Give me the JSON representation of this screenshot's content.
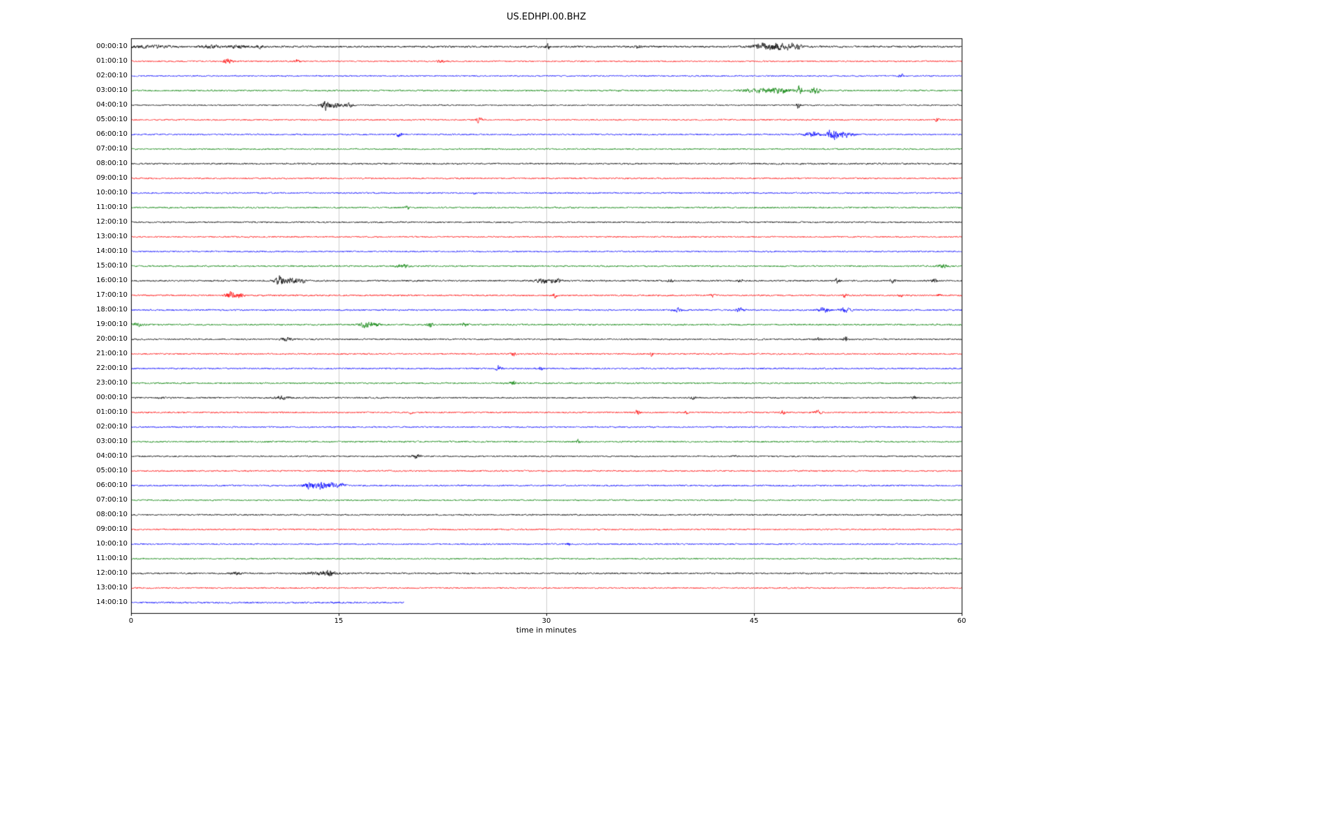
{
  "page": {
    "background": "#ffffff"
  },
  "chart_data": {
    "type": "line",
    "variant": "seismogram-helicorder-dayplot",
    "title": "US.EDHPI.00.BHZ",
    "xlabel": "time in minutes",
    "xlim": [
      0,
      60
    ],
    "x_ticks": [
      0,
      15,
      30,
      45,
      60
    ],
    "grid": {
      "vertical_lines_at": [
        15,
        30,
        45
      ],
      "color": "#cccccc"
    },
    "axes_color": "#000000",
    "trace_color_cycle": {
      "black": "#000000",
      "red": "#ff0000",
      "blue": "#0000ff",
      "green": "#008000"
    },
    "rows": [
      {
        "label": "00:00:10",
        "color": "black",
        "noise": 1.1,
        "end": 60,
        "events": [
          [
            1.2,
            1.2,
            1.2
          ],
          [
            5.8,
            0.5,
            1.5
          ],
          [
            7.8,
            0.4,
            1.6
          ],
          [
            9.2,
            0.3,
            1.2
          ],
          [
            30.1,
            0.1,
            3.0
          ],
          [
            36.6,
            0.15,
            1.5
          ],
          [
            45.6,
            0.5,
            2.2
          ],
          [
            46.8,
            0.8,
            2.6
          ],
          [
            48.0,
            0.3,
            2.0
          ]
        ]
      },
      {
        "label": "01:00:10",
        "color": "red",
        "noise": 0.8,
        "end": 60,
        "events": [
          [
            7.0,
            0.2,
            3.5
          ],
          [
            11.9,
            0.15,
            2.2
          ],
          [
            22.4,
            0.2,
            1.2
          ]
        ]
      },
      {
        "label": "02:00:10",
        "color": "blue",
        "noise": 0.8,
        "end": 60,
        "events": [
          [
            55.6,
            0.12,
            2.0
          ]
        ]
      },
      {
        "label": "03:00:10",
        "color": "green",
        "noise": 0.9,
        "end": 60,
        "events": [
          [
            45.3,
            0.8,
            1.8
          ],
          [
            46.8,
            0.6,
            2.2
          ],
          [
            48.3,
            0.12,
            4.5
          ],
          [
            49.4,
            0.3,
            2.5
          ]
        ]
      },
      {
        "label": "04:00:10",
        "color": "black",
        "noise": 0.8,
        "end": 60,
        "events": [
          [
            14.1,
            0.25,
            4.5
          ],
          [
            14.9,
            0.4,
            2.0
          ],
          [
            15.8,
            0.2,
            1.5
          ],
          [
            48.2,
            0.1,
            3.5
          ]
        ]
      },
      {
        "label": "05:00:10",
        "color": "red",
        "noise": 0.8,
        "end": 60,
        "events": [
          [
            25.1,
            0.2,
            2.2
          ],
          [
            58.2,
            0.12,
            1.6
          ]
        ]
      },
      {
        "label": "06:00:10",
        "color": "blue",
        "noise": 0.85,
        "end": 60,
        "events": [
          [
            19.4,
            0.15,
            2.2
          ],
          [
            49.2,
            0.4,
            2.2
          ],
          [
            50.6,
            0.25,
            5.0
          ],
          [
            51.4,
            0.5,
            3.0
          ]
        ]
      },
      {
        "label": "07:00:10",
        "color": "green",
        "noise": 0.85,
        "end": 60,
        "events": []
      },
      {
        "label": "08:00:10",
        "color": "black",
        "noise": 0.95,
        "end": 60,
        "events": []
      },
      {
        "label": "09:00:10",
        "color": "red",
        "noise": 0.85,
        "end": 60,
        "events": []
      },
      {
        "label": "10:00:10",
        "color": "blue",
        "noise": 0.85,
        "end": 60,
        "events": [
          [
            24.9,
            0.12,
            1.4
          ]
        ]
      },
      {
        "label": "11:00:10",
        "color": "green",
        "noise": 0.9,
        "end": 60,
        "events": [
          [
            20.0,
            0.1,
            2.0
          ]
        ]
      },
      {
        "label": "12:00:10",
        "color": "black",
        "noise": 0.9,
        "end": 60,
        "events": []
      },
      {
        "label": "13:00:10",
        "color": "red",
        "noise": 0.8,
        "end": 60,
        "events": []
      },
      {
        "label": "14:00:10",
        "color": "blue",
        "noise": 0.85,
        "end": 60,
        "events": []
      },
      {
        "label": "15:00:10",
        "color": "green",
        "noise": 0.9,
        "end": 60,
        "events": [
          [
            19.6,
            0.3,
            1.8
          ],
          [
            58.6,
            0.25,
            1.6
          ]
        ]
      },
      {
        "label": "16:00:10",
        "color": "black",
        "noise": 0.95,
        "end": 60,
        "events": [
          [
            10.7,
            0.2,
            5.0
          ],
          [
            11.4,
            0.4,
            3.0
          ],
          [
            12.3,
            0.25,
            2.0
          ],
          [
            29.8,
            0.4,
            2.2
          ],
          [
            30.7,
            0.25,
            2.2
          ],
          [
            39.0,
            0.15,
            1.6
          ],
          [
            44.0,
            0.15,
            1.6
          ],
          [
            51.0,
            0.15,
            2.2
          ],
          [
            55.0,
            0.15,
            1.6
          ],
          [
            58.0,
            0.15,
            1.8
          ]
        ]
      },
      {
        "label": "17:00:10",
        "color": "red",
        "noise": 0.9,
        "end": 60,
        "events": [
          [
            7.2,
            0.25,
            3.2
          ],
          [
            7.9,
            0.15,
            2.6
          ],
          [
            30.6,
            0.12,
            1.8
          ],
          [
            42.0,
            0.12,
            2.0
          ],
          [
            51.6,
            0.12,
            2.2
          ],
          [
            55.6,
            0.1,
            1.6
          ],
          [
            58.4,
            0.1,
            1.6
          ]
        ]
      },
      {
        "label": "18:00:10",
        "color": "blue",
        "noise": 0.9,
        "end": 60,
        "events": [
          [
            39.5,
            0.25,
            1.8
          ],
          [
            44.0,
            0.25,
            1.8
          ],
          [
            50.1,
            0.3,
            2.2
          ],
          [
            51.6,
            0.25,
            2.6
          ]
        ]
      },
      {
        "label": "19:00:10",
        "color": "green",
        "noise": 0.95,
        "end": 60,
        "events": [
          [
            0.5,
            0.3,
            1.6
          ],
          [
            16.9,
            0.3,
            2.6
          ],
          [
            17.6,
            0.25,
            2.2
          ],
          [
            21.6,
            0.15,
            2.2
          ],
          [
            24.1,
            0.15,
            1.8
          ]
        ]
      },
      {
        "label": "20:00:10",
        "color": "black",
        "noise": 0.9,
        "end": 60,
        "events": [
          [
            11.2,
            0.3,
            1.6
          ],
          [
            49.6,
            0.15,
            1.6
          ],
          [
            51.6,
            0.1,
            3.2
          ]
        ]
      },
      {
        "label": "21:00:10",
        "color": "red",
        "noise": 0.85,
        "end": 60,
        "events": [
          [
            27.6,
            0.1,
            2.4
          ],
          [
            37.6,
            0.1,
            2.0
          ]
        ]
      },
      {
        "label": "22:00:10",
        "color": "blue",
        "noise": 0.9,
        "end": 60,
        "events": [
          [
            26.6,
            0.15,
            2.8
          ],
          [
            29.6,
            0.12,
            2.0
          ]
        ]
      },
      {
        "label": "23:00:10",
        "color": "green",
        "noise": 0.9,
        "end": 60,
        "events": [
          [
            27.6,
            0.18,
            2.2
          ]
        ]
      },
      {
        "label": "00:00:10",
        "color": "black",
        "noise": 0.9,
        "end": 60,
        "events": [
          [
            2.2,
            0.15,
            1.4
          ],
          [
            10.9,
            0.4,
            1.8
          ],
          [
            40.6,
            0.12,
            1.4
          ],
          [
            56.6,
            0.12,
            1.8
          ]
        ]
      },
      {
        "label": "01:00:10",
        "color": "red",
        "noise": 0.85,
        "end": 60,
        "events": [
          [
            20.2,
            0.08,
            1.4
          ],
          [
            36.6,
            0.12,
            2.8
          ],
          [
            40.1,
            0.1,
            1.6
          ],
          [
            47.1,
            0.12,
            1.8
          ],
          [
            49.6,
            0.2,
            1.8
          ]
        ]
      },
      {
        "label": "02:00:10",
        "color": "blue",
        "noise": 0.85,
        "end": 60,
        "events": []
      },
      {
        "label": "03:00:10",
        "color": "green",
        "noise": 0.9,
        "end": 60,
        "events": [
          [
            32.3,
            0.12,
            1.6
          ]
        ]
      },
      {
        "label": "04:00:10",
        "color": "black",
        "noise": 0.85,
        "end": 60,
        "events": [
          [
            20.6,
            0.2,
            2.2
          ],
          [
            43.6,
            0.1,
            1.6
          ]
        ]
      },
      {
        "label": "05:00:10",
        "color": "red",
        "noise": 0.85,
        "end": 60,
        "events": []
      },
      {
        "label": "06:00:10",
        "color": "blue",
        "noise": 0.9,
        "end": 60,
        "events": [
          [
            12.9,
            0.3,
            3.2
          ],
          [
            13.8,
            0.25,
            5.0
          ],
          [
            14.6,
            0.25,
            2.8
          ],
          [
            15.3,
            0.15,
            2.0
          ]
        ]
      },
      {
        "label": "07:00:10",
        "color": "green",
        "noise": 0.85,
        "end": 60,
        "events": []
      },
      {
        "label": "08:00:10",
        "color": "black",
        "noise": 0.9,
        "end": 60,
        "events": []
      },
      {
        "label": "09:00:10",
        "color": "red",
        "noise": 0.85,
        "end": 60,
        "events": []
      },
      {
        "label": "10:00:10",
        "color": "blue",
        "noise": 0.85,
        "end": 60,
        "events": [
          [
            31.6,
            0.1,
            1.6
          ]
        ]
      },
      {
        "label": "11:00:10",
        "color": "green",
        "noise": 0.85,
        "end": 60,
        "events": []
      },
      {
        "label": "12:00:10",
        "color": "black",
        "noise": 0.95,
        "end": 60,
        "events": [
          [
            7.6,
            0.3,
            1.3
          ],
          [
            13.6,
            0.8,
            1.4
          ],
          [
            14.3,
            0.25,
            2.6
          ]
        ]
      },
      {
        "label": "13:00:10",
        "color": "red",
        "noise": 0.8,
        "end": 60,
        "events": []
      },
      {
        "label": "14:00:10",
        "color": "blue",
        "noise": 0.95,
        "end": 19.7,
        "events": []
      }
    ]
  }
}
